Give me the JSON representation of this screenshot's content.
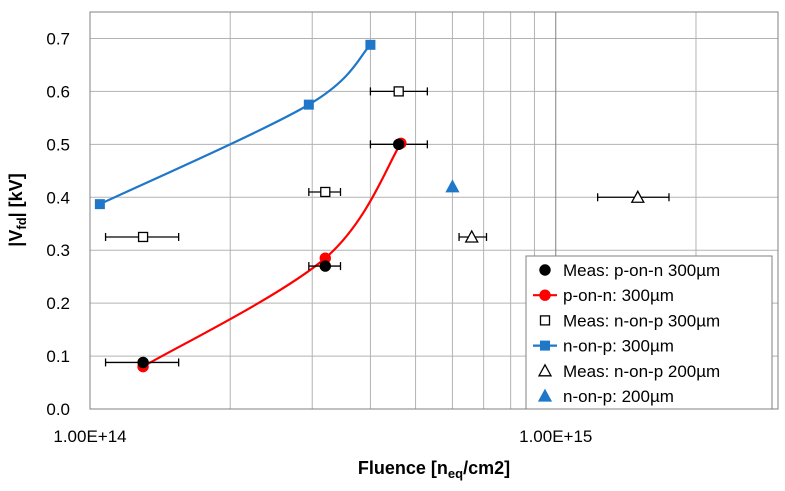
{
  "chart_data": {
    "type": "scatter",
    "xlabel": "Fluence [n",
    "xlabel_sub": "eq",
    "xlabel_end": "/cm2]",
    "ylabel": "|V",
    "ylabel_sub": "fd",
    "ylabel_end": "| [kV]",
    "x_scale": "log",
    "xlim": [
      100000000000000.0,
      3000000000000000.0
    ],
    "ylim": [
      0,
      0.75
    ],
    "x_tick_labels": [
      {
        "value": 100000000000000.0,
        "label": "1.00E+14"
      },
      {
        "value": 1000000000000000.0,
        "label": "1.00E+15"
      }
    ],
    "y_tick_labels": [
      "0.0",
      "0.1",
      "0.2",
      "0.3",
      "0.4",
      "0.5",
      "0.6",
      "0.7"
    ],
    "y_ticks": [
      0,
      0.1,
      0.2,
      0.3,
      0.4,
      0.5,
      0.6,
      0.7
    ],
    "x_minor_grid": [
      200000000000000.0,
      300000000000000.0,
      400000000000000.0,
      500000000000000.0,
      600000000000000.0,
      700000000000000.0,
      800000000000000.0,
      900000000000000.0,
      2000000000000000.0,
      3000000000000000.0
    ],
    "grid": true,
    "legend_position": "bottom-right",
    "series": [
      {
        "name": "Meas: p-on-n 300µm",
        "marker": "circle-filled",
        "color": "#000000",
        "line": false,
        "points": [
          {
            "x": 130000000000000.0,
            "y": 0.088,
            "xerr": [
              108000000000000.0,
              155000000000000.0
            ]
          },
          {
            "x": 320000000000000.0,
            "y": 0.27,
            "xerr": [
              295000000000000.0,
              345000000000000.0
            ]
          },
          {
            "x": 460000000000000.0,
            "y": 0.5,
            "xerr": [
              400000000000000.0,
              530000000000000.0
            ]
          }
        ]
      },
      {
        "name": "p-on-n: 300µm",
        "marker": "circle-filled",
        "color": "#ff0000",
        "line": true,
        "points": [
          {
            "x": 130000000000000.0,
            "y": 0.08
          },
          {
            "x": 320000000000000.0,
            "y": 0.285
          },
          {
            "x": 465000000000000.0,
            "y": 0.502
          }
        ]
      },
      {
        "name": "Meas: n-on-p 300µm",
        "marker": "square-open",
        "color": "#000000",
        "line": false,
        "points": [
          {
            "x": 130000000000000.0,
            "y": 0.325,
            "xerr": [
              108000000000000.0,
              155000000000000.0
            ]
          },
          {
            "x": 320000000000000.0,
            "y": 0.41,
            "xerr": [
              295000000000000.0,
              345000000000000.0
            ]
          },
          {
            "x": 460000000000000.0,
            "y": 0.6,
            "xerr": [
              400000000000000.0,
              530000000000000.0
            ]
          }
        ]
      },
      {
        "name": "n-on-p: 300µm",
        "marker": "square-filled",
        "color": "#1f77c9",
        "line": true,
        "points": [
          {
            "x": 105000000000000.0,
            "y": 0.387
          },
          {
            "x": 295000000000000.0,
            "y": 0.575
          },
          {
            "x": 400000000000000.0,
            "y": 0.688
          }
        ]
      },
      {
        "name": "Meas: n-on-p 200µm",
        "marker": "triangle-open",
        "color": "#000000",
        "line": false,
        "points": [
          {
            "x": 660000000000000.0,
            "y": 0.325,
            "xerr": [
              620000000000000.0,
              710000000000000.0
            ]
          },
          {
            "x": 1500000000000000.0,
            "y": 0.4,
            "xerr": [
              1230000000000000.0,
              1750000000000000.0
            ]
          }
        ]
      },
      {
        "name": "n-on-p: 200µm",
        "marker": "triangle-filled",
        "color": "#1f77c9",
        "line": false,
        "points": [
          {
            "x": 600000000000000.0,
            "y": 0.42
          }
        ]
      }
    ]
  }
}
